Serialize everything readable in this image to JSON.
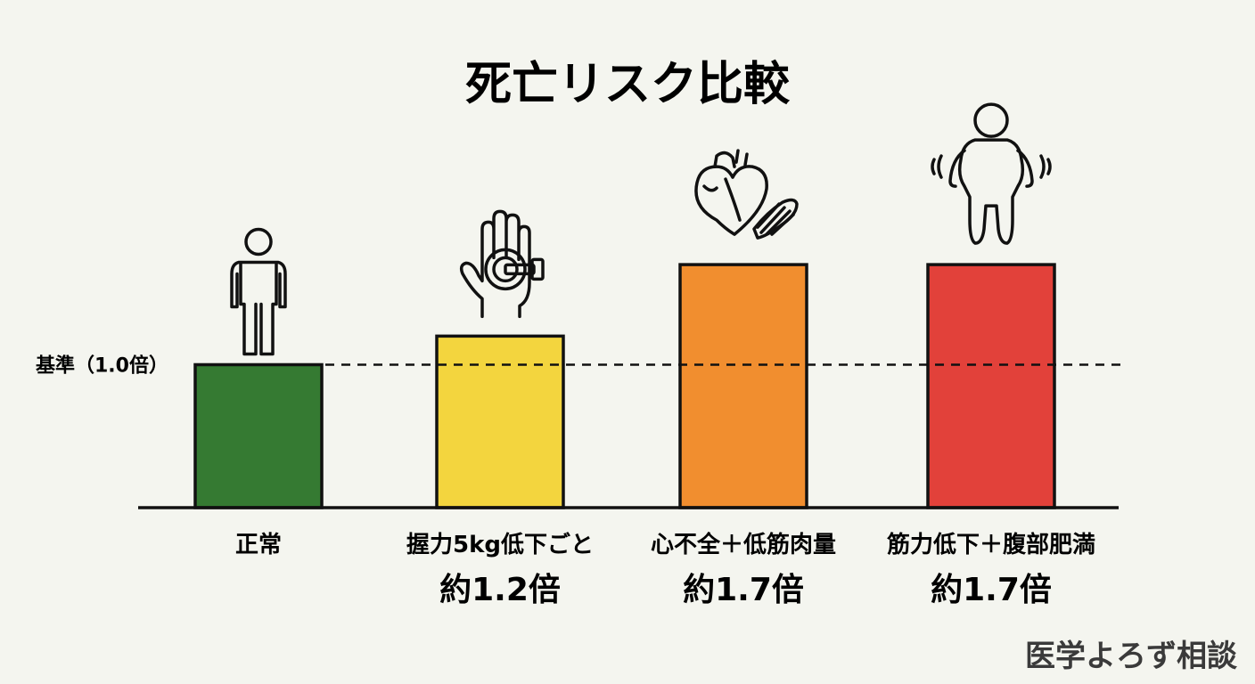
{
  "chart_data": {
    "type": "bar",
    "title": "死亡リスク比較",
    "baseline_label": "基準（1.0倍）",
    "baseline_value": 1.0,
    "ylim": [
      0,
      1.9
    ],
    "grid": false,
    "categories": [
      "正常",
      "握力5kg低下ごと",
      "心不全＋低筋肉量",
      "筋力低下＋腹部肥満"
    ],
    "values": [
      1.0,
      1.2,
      1.7,
      1.7
    ],
    "value_labels": [
      "",
      "約1.2倍",
      "約1.7倍",
      "約1.7倍"
    ],
    "colors": [
      "#357a32",
      "#f3d53e",
      "#f18e2f",
      "#e2413a"
    ],
    "icons": [
      "person-icon",
      "hand-grip-icon",
      "heart-muscle-icon",
      "obese-person-icon"
    ]
  },
  "watermark": "医学よろず相談"
}
